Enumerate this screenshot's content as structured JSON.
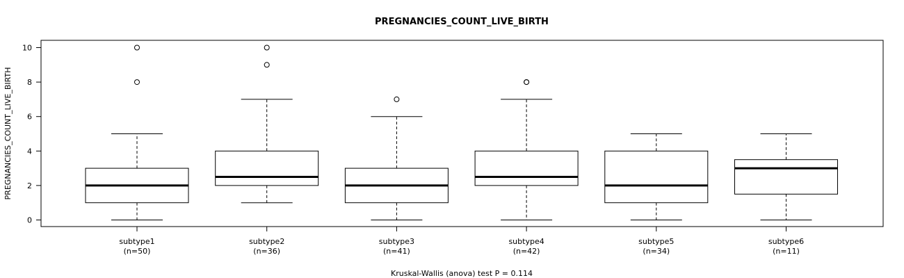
{
  "chart_data": {
    "type": "boxplot",
    "title": "PREGNANCIES_COUNT_LIVE_BIRTH",
    "ylabel": "PREGNANCIES_COUNT_LIVE_BIRTH",
    "xlabel": "Kruskal-Wallis (anova) test P = 0.114",
    "ylim": [
      -0.4,
      10.25
    ],
    "yticks": [
      0,
      2,
      4,
      6,
      8,
      10
    ],
    "grid": false,
    "groups": [
      {
        "name": "subtype1",
        "n_label": "(n=50)",
        "whisker_low": 0,
        "q1": 1,
        "median": 2,
        "q3": 3,
        "whisker_high": 5,
        "outliers": [
          8,
          10
        ]
      },
      {
        "name": "subtype2",
        "n_label": "(n=36)",
        "whisker_low": 1,
        "q1": 2,
        "median": 2.5,
        "q3": 4,
        "whisker_high": 7,
        "outliers": [
          9,
          10
        ]
      },
      {
        "name": "subtype3",
        "n_label": "(n=41)",
        "whisker_low": 0,
        "q1": 1,
        "median": 2,
        "q3": 3,
        "whisker_high": 6,
        "outliers": [
          7
        ]
      },
      {
        "name": "subtype4",
        "n_label": "(n=42)",
        "whisker_low": 0,
        "q1": 2,
        "median": 2.5,
        "q3": 4,
        "whisker_high": 7,
        "outliers": [
          8,
          8
        ]
      },
      {
        "name": "subtype5",
        "n_label": "(n=34)",
        "whisker_low": 0,
        "q1": 1,
        "median": 2,
        "q3": 4,
        "whisker_high": 5,
        "outliers": []
      },
      {
        "name": "subtype6",
        "n_label": "(n=11)",
        "whisker_low": 0,
        "q1": 1.5,
        "median": 3,
        "q3": 3.5,
        "whisker_high": 5,
        "outliers": []
      }
    ]
  }
}
